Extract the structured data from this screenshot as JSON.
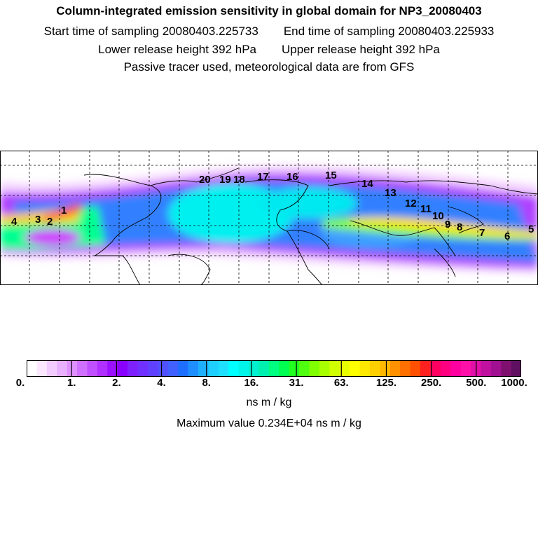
{
  "header": {
    "title": "Column-integrated emission sensitivity in global domain for NP3_20080403",
    "start_label": "Start time of sampling 20080403.225733",
    "end_label": "End time of sampling 20080403.225933",
    "lower_label": "Lower release height  392 hPa",
    "upper_label": "Upper release height  392 hPa",
    "tracer_note": "Passive tracer used, meteorological data are from GFS"
  },
  "map": {
    "day_labels": [
      "1",
      "2",
      "3",
      "4",
      "5",
      "6",
      "7",
      "8",
      "9",
      "10",
      "11",
      "12",
      "13",
      "14",
      "15",
      "16",
      "17",
      "18",
      "19",
      "20"
    ]
  },
  "colorbar": {
    "ticks": [
      "0.",
      "1.",
      "2.",
      "4.",
      "8.",
      "16.",
      "31.",
      "63.",
      "125.",
      "250.",
      "500.",
      "1000."
    ],
    "colors": [
      "#ffffff",
      "#fbe8ff",
      "#f2ccff",
      "#e8b0ff",
      "#de90ff",
      "#d070ff",
      "#c050ff",
      "#b030ff",
      "#9a10ff",
      "#8a00ff",
      "#7f20ff",
      "#7030ff",
      "#6040ff",
      "#5050ff",
      "#4060ff",
      "#1f6fff",
      "#1f8fff",
      "#1fafff",
      "#1fcfff",
      "#1fdfff",
      "#00ffff",
      "#00f5e8",
      "#00f0d0",
      "#00f0b0",
      "#00ff80",
      "#00ff50",
      "#20ff20",
      "#50ff10",
      "#80ff00",
      "#a8ff00",
      "#d0ff00",
      "#e8ff00",
      "#ffff00",
      "#ffe800",
      "#ffd000",
      "#ffb800",
      "#ff9000",
      "#ff7000",
      "#ff5000",
      "#ff2020",
      "#ff0060",
      "#ff0080",
      "#ff00a0",
      "#ff10a8",
      "#e010a8",
      "#c010a0",
      "#a01090",
      "#801070",
      "#601060"
    ],
    "units": "ns m / kg",
    "max_value_text": "Maximum value  0.234E+04 ns m / kg"
  }
}
